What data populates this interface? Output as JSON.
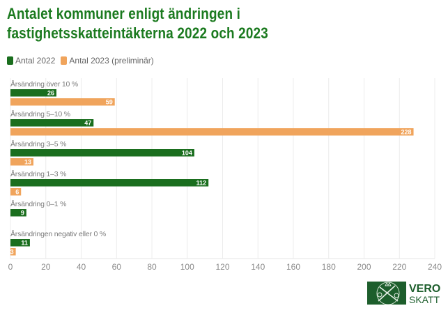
{
  "chart_data": {
    "type": "bar",
    "orientation": "horizontal",
    "title": "Antalet kommuner enligt ändringen i fastighetsskatteintäkterna 2022 och 2023",
    "title_lines": [
      "Antalet kommuner enligt ändringen i",
      "fastighetsskatteintäkterna 2022 och 2023"
    ],
    "categories": [
      "Årsändring över 10 %",
      "Årsändring 5–10 %",
      "Årsändring 3–5 %",
      "Årsändring 1–3 %",
      "Årsändring 0–1 %",
      "Årsändringen negativ eller 0 %"
    ],
    "series": [
      {
        "name": "Antal 2022",
        "color": "#1a6e1e",
        "values": [
          26,
          47,
          104,
          112,
          9,
          11
        ]
      },
      {
        "name": "Antal 2023 (preliminär)",
        "color": "#f0a45c",
        "values": [
          59,
          228,
          13,
          6,
          null,
          3
        ]
      }
    ],
    "xlabel": "",
    "ylabel": "",
    "xlim": [
      0,
      240
    ],
    "xticks": [
      0,
      20,
      40,
      60,
      80,
      100,
      120,
      140,
      160,
      180,
      200,
      220,
      240
    ],
    "grid": true,
    "legend_position": "top-left",
    "data_labels": true
  },
  "logo": {
    "top": "VERO",
    "bottom": "SKATT",
    "color": "#1d5e2c"
  }
}
